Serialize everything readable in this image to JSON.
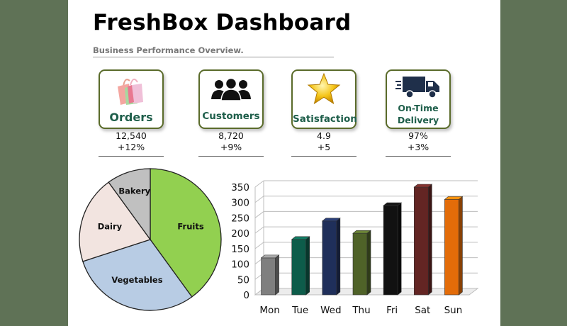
{
  "header": {
    "title": "FreshBox Dashboard",
    "subtitle": "Business Performance Overview."
  },
  "kpis": [
    {
      "label": "Orders",
      "value": "12,540",
      "change": "+12%",
      "icon": "shopping-bags-icon"
    },
    {
      "label": "Customers",
      "value": "8,720",
      "change": "+9%",
      "icon": "users-group-icon"
    },
    {
      "label": "Satisfaction",
      "value": "4.9",
      "change": "+5",
      "icon": "star-icon"
    },
    {
      "label": "On-Time Delivery",
      "label_line1": "On-Time",
      "label_line2": "Delivery",
      "value": "97%",
      "change": "+3%",
      "icon": "delivery-truck-icon"
    }
  ],
  "colors": {
    "background": "#5f7256",
    "card_border": "#5a6b2a",
    "kpi_label": "#1e5e4a"
  },
  "chart_data": [
    {
      "type": "pie",
      "categories": [
        "Fruits",
        "Vegetables",
        "Dairy",
        "Bakery"
      ],
      "values": [
        40,
        30,
        20,
        10
      ],
      "colors": [
        "#92d050",
        "#b8cce4",
        "#f2e4e0",
        "#c0c0c0"
      ],
      "title": ""
    },
    {
      "type": "bar",
      "categories": [
        "Mon",
        "Tue",
        "Wed",
        "Thu",
        "Fri",
        "Sat",
        "Sun"
      ],
      "values": [
        120,
        180,
        240,
        200,
        290,
        350,
        310
      ],
      "colors": [
        "#7f7f7f",
        "#0d5c4a",
        "#1f2f5a",
        "#4f6228",
        "#111111",
        "#632523",
        "#e36c09"
      ],
      "ylim": [
        0,
        350
      ],
      "yticks": [
        0,
        50,
        100,
        150,
        200,
        250,
        300,
        350
      ],
      "grid": true,
      "title": "",
      "xlabel": "",
      "ylabel": ""
    }
  ]
}
